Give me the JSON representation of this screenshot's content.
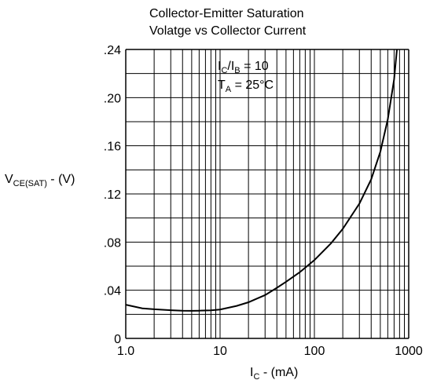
{
  "chart_data": {
    "type": "line",
    "title_line1": "Collector-Emitter Saturation",
    "title_line2": "Volatge vs Collector Current",
    "ylabel_main": "V",
    "ylabel_sub": "CE(SAT)",
    "ylabel_unit": " - (V)",
    "xlabel_main": "I",
    "xlabel_sub": "C",
    "xlabel_unit": " - (mA)",
    "annotation1": {
      "a": "I",
      "a_sub": "C",
      "slash": "/I",
      "b_sub": "B",
      "rest": " = 10"
    },
    "annotation2": {
      "a": "T",
      "a_sub": "A",
      "rest": " = 25°C"
    },
    "x_scale": "log",
    "xlim": [
      1,
      1000
    ],
    "ylim": [
      0,
      0.24
    ],
    "x_ticks": [
      {
        "value": 1,
        "label": "1.0"
      },
      {
        "value": 10,
        "label": "10"
      },
      {
        "value": 100,
        "label": "100"
      },
      {
        "value": 1000,
        "label": "1000"
      }
    ],
    "y_ticks": [
      {
        "value": 0,
        "label": "0"
      },
      {
        "value": 0.04,
        "label": ".04"
      },
      {
        "value": 0.08,
        "label": ".08"
      },
      {
        "value": 0.12,
        "label": ".12"
      },
      {
        "value": 0.16,
        "label": ".16"
      },
      {
        "value": 0.2,
        "label": ".20"
      },
      {
        "value": 0.24,
        "label": ".24"
      }
    ],
    "grid": true,
    "series": [
      {
        "x": [
          1.0,
          1.5,
          2,
          3,
          4,
          5,
          6,
          8,
          10,
          15,
          20,
          30,
          40,
          50,
          70,
          100,
          150,
          200,
          300,
          400,
          500,
          600,
          700,
          750
        ],
        "values": [
          0.028,
          0.025,
          0.0242,
          0.0234,
          0.023,
          0.0229,
          0.023,
          0.0233,
          0.024,
          0.027,
          0.03,
          0.036,
          0.042,
          0.047,
          0.055,
          0.065,
          0.079,
          0.091,
          0.112,
          0.132,
          0.155,
          0.182,
          0.215,
          0.24
        ]
      }
    ]
  }
}
